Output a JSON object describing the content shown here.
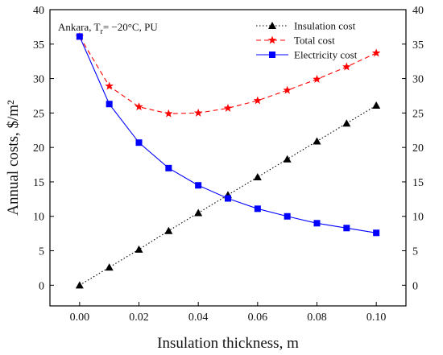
{
  "chart_data": {
    "type": "line",
    "annotation": {
      "prefix": "Ankara, T",
      "subscript": "r",
      "suffix": "= −20°C, PU"
    },
    "xlabel": "Insulation thickness, m",
    "ylabel": "Annual costs, $/m²",
    "xlim": [
      -0.01,
      0.11
    ],
    "ylim": [
      -3,
      40
    ],
    "xticks": [
      0.0,
      0.02,
      0.04,
      0.06,
      0.08,
      0.1
    ],
    "xtick_labels": [
      "0.00",
      "0.02",
      "0.04",
      "0.06",
      "0.08",
      "0.10"
    ],
    "yticks": [
      0,
      5,
      10,
      15,
      20,
      25,
      30,
      35,
      40
    ],
    "ytick_labels": [
      "0",
      "5",
      "10",
      "15",
      "20",
      "25",
      "30",
      "35",
      "40"
    ],
    "right_axis_mirrors_left": true,
    "legend_position": "top-right",
    "x": [
      0.0,
      0.01,
      0.02,
      0.03,
      0.04,
      0.05,
      0.06,
      0.07,
      0.08,
      0.09,
      0.1
    ],
    "series": [
      {
        "name": "Insulation cost",
        "color": "#000000",
        "line_style": "dotted",
        "marker": "triangle",
        "values": [
          0.0,
          2.6,
          5.2,
          7.9,
          10.5,
          13.1,
          15.7,
          18.3,
          20.9,
          23.5,
          26.1
        ]
      },
      {
        "name": "Total cost",
        "color": "#ff0000",
        "line_style": "dashed",
        "marker": "star",
        "values": [
          36.1,
          28.9,
          25.9,
          24.9,
          25.0,
          25.7,
          26.8,
          28.3,
          29.9,
          31.7,
          33.7
        ]
      },
      {
        "name": "Electricity cost",
        "color": "#0000ff",
        "line_style": "solid",
        "marker": "square",
        "values": [
          36.1,
          26.3,
          20.7,
          17.0,
          14.5,
          12.6,
          11.1,
          10.0,
          9.0,
          8.3,
          7.6
        ]
      }
    ]
  }
}
